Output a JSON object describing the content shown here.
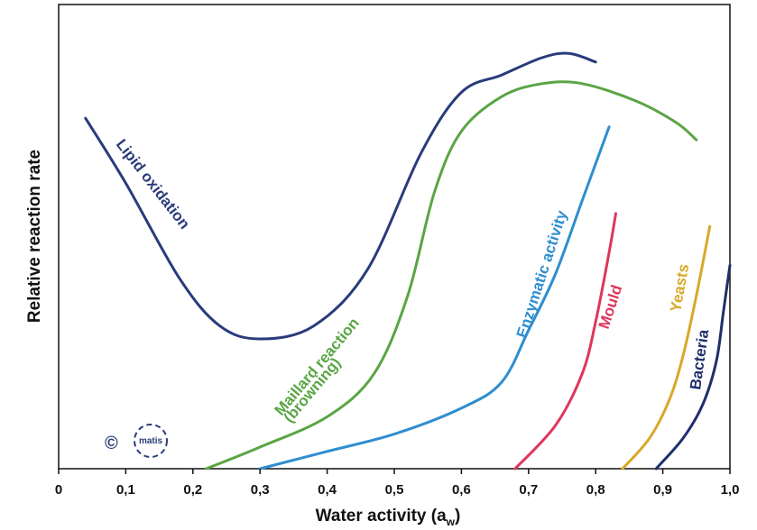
{
  "chart_data": {
    "type": "line",
    "xlabel": "Water activity (a",
    "xlabel_sub": "w",
    "xlabel_close": ")",
    "ylabel": "Relative reaction rate",
    "xlim": [
      0,
      1.0
    ],
    "ylim": [
      0,
      1.0
    ],
    "x_tick_labels": [
      "0",
      "0,1",
      "0,2",
      "0,3",
      "0,4",
      "0,5",
      "0,6",
      "0,7",
      "0,8",
      "0,9",
      "1,0"
    ],
    "x_ticks": [
      0,
      0.1,
      0.2,
      0.3,
      0.4,
      0.5,
      0.6,
      0.7,
      0.8,
      0.9,
      1.0
    ],
    "grid": false,
    "series": [
      {
        "name": "Lipid oxidation",
        "color": "#2a3b7a",
        "points": [
          [
            0.04,
            0.81
          ],
          [
            0.1,
            0.66
          ],
          [
            0.18,
            0.44
          ],
          [
            0.24,
            0.33
          ],
          [
            0.3,
            0.3
          ],
          [
            0.38,
            0.33
          ],
          [
            0.46,
            0.46
          ],
          [
            0.54,
            0.73
          ],
          [
            0.6,
            0.87
          ],
          [
            0.66,
            0.91
          ],
          [
            0.72,
            0.95
          ],
          [
            0.76,
            0.96
          ],
          [
            0.8,
            0.94
          ]
        ]
      },
      {
        "name": "Maillard reaction (browning)",
        "color": "#5aa545",
        "points": [
          [
            0.22,
            0.0
          ],
          [
            0.3,
            0.05
          ],
          [
            0.4,
            0.12
          ],
          [
            0.47,
            0.22
          ],
          [
            0.52,
            0.4
          ],
          [
            0.56,
            0.64
          ],
          [
            0.6,
            0.78
          ],
          [
            0.66,
            0.86
          ],
          [
            0.72,
            0.89
          ],
          [
            0.78,
            0.89
          ],
          [
            0.86,
            0.85
          ],
          [
            0.92,
            0.8
          ],
          [
            0.95,
            0.76
          ]
        ]
      },
      {
        "name": "Enzymatic activity",
        "color": "#2e8ecf",
        "points": [
          [
            0.3,
            0.0
          ],
          [
            0.4,
            0.04
          ],
          [
            0.5,
            0.08
          ],
          [
            0.6,
            0.14
          ],
          [
            0.66,
            0.2
          ],
          [
            0.7,
            0.32
          ],
          [
            0.74,
            0.45
          ],
          [
            0.78,
            0.62
          ],
          [
            0.82,
            0.79
          ]
        ]
      },
      {
        "name": "Mould",
        "color": "#e0365b",
        "points": [
          [
            0.68,
            0.0
          ],
          [
            0.74,
            0.1
          ],
          [
            0.78,
            0.22
          ],
          [
            0.8,
            0.34
          ],
          [
            0.82,
            0.5
          ],
          [
            0.83,
            0.59
          ]
        ]
      },
      {
        "name": "Yeasts",
        "color": "#d9a82a",
        "points": [
          [
            0.84,
            0.0
          ],
          [
            0.88,
            0.07
          ],
          [
            0.91,
            0.16
          ],
          [
            0.93,
            0.26
          ],
          [
            0.95,
            0.4
          ],
          [
            0.97,
            0.56
          ]
        ]
      },
      {
        "name": "Bacteria",
        "color": "#1f2f6b",
        "points": [
          [
            0.89,
            0.0
          ],
          [
            0.93,
            0.07
          ],
          [
            0.96,
            0.15
          ],
          [
            0.98,
            0.25
          ],
          [
            0.99,
            0.36
          ],
          [
            1.0,
            0.47
          ]
        ]
      }
    ]
  },
  "labels": {
    "lipid": "Lipid oxidation",
    "maillard_1": "Maillard reaction",
    "maillard_2": "(browning)",
    "enzymatic": "Enzymatic activity",
    "mould": "Mould",
    "yeasts": "Yeasts",
    "bacteria": "Bacteria"
  },
  "logo": {
    "copyright": "©",
    "name": "matis"
  }
}
